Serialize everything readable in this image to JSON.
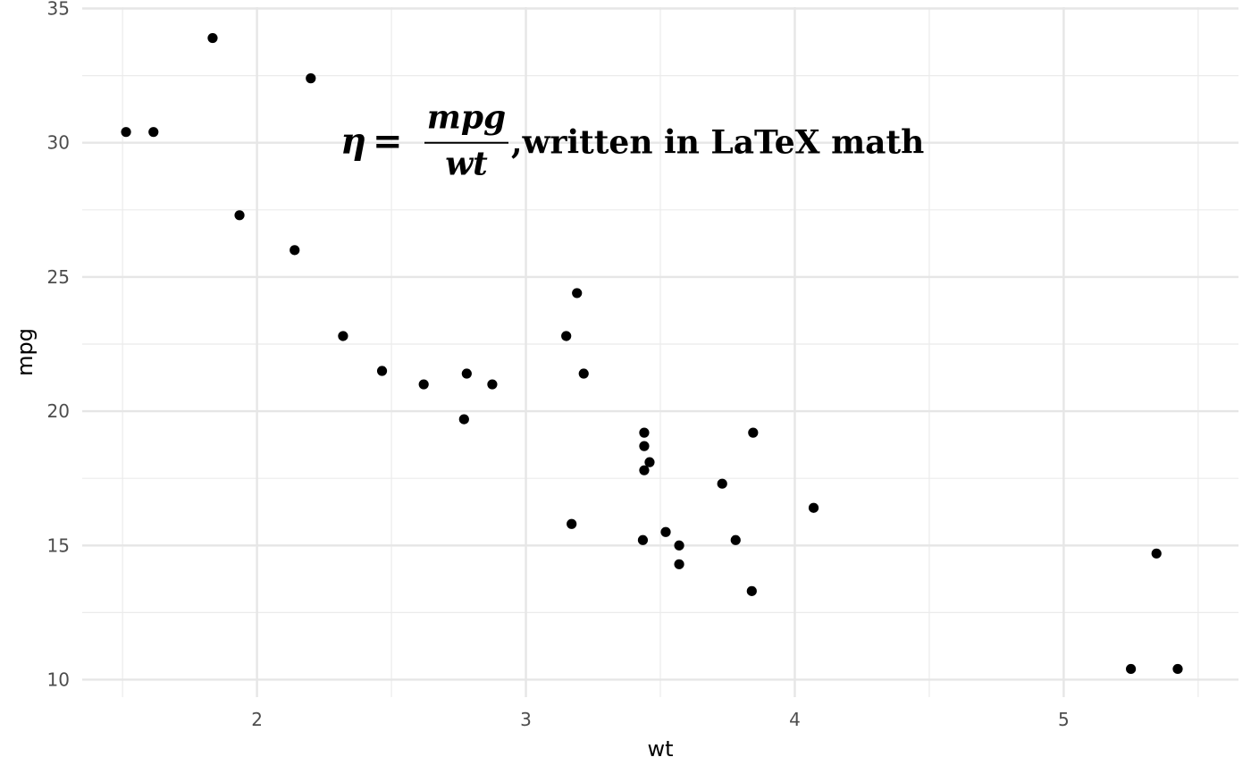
{
  "chart_data": {
    "type": "scatter",
    "title": "",
    "xlabel": "wt",
    "ylabel": "mpg",
    "xlim": [
      1.35,
      5.65
    ],
    "ylim": [
      9.35,
      35.05
    ],
    "x_ticks": [
      2,
      3,
      4,
      5
    ],
    "x_tick_labels": [
      "2",
      "3",
      "4",
      "5"
    ],
    "x_minor_ticks": [
      1.5,
      2.5,
      3.5,
      4.5,
      5.5
    ],
    "y_ticks": [
      10,
      15,
      20,
      25,
      30,
      35
    ],
    "y_tick_labels": [
      "10",
      "15",
      "20",
      "25",
      "30",
      "35"
    ],
    "y_minor_ticks": [
      12.5,
      17.5,
      22.5,
      27.5,
      32.5
    ],
    "grid": true,
    "legend": "none",
    "point_color": "#000000",
    "points": [
      {
        "x": 2.62,
        "y": 21.0
      },
      {
        "x": 2.875,
        "y": 21.0
      },
      {
        "x": 2.32,
        "y": 22.8
      },
      {
        "x": 3.215,
        "y": 21.4
      },
      {
        "x": 3.44,
        "y": 18.7
      },
      {
        "x": 3.46,
        "y": 18.1
      },
      {
        "x": 3.57,
        "y": 14.3
      },
      {
        "x": 3.19,
        "y": 24.4
      },
      {
        "x": 3.15,
        "y": 22.8
      },
      {
        "x": 3.44,
        "y": 19.2
      },
      {
        "x": 3.44,
        "y": 17.8
      },
      {
        "x": 4.07,
        "y": 16.4
      },
      {
        "x": 3.73,
        "y": 17.3
      },
      {
        "x": 3.78,
        "y": 15.2
      },
      {
        "x": 5.25,
        "y": 10.4
      },
      {
        "x": 5.424,
        "y": 10.4
      },
      {
        "x": 5.345,
        "y": 14.7
      },
      {
        "x": 2.2,
        "y": 32.4
      },
      {
        "x": 1.615,
        "y": 30.4
      },
      {
        "x": 1.835,
        "y": 33.9
      },
      {
        "x": 2.465,
        "y": 21.5
      },
      {
        "x": 3.52,
        "y": 15.5
      },
      {
        "x": 3.435,
        "y": 15.2
      },
      {
        "x": 3.84,
        "y": 13.3
      },
      {
        "x": 3.845,
        "y": 19.2
      },
      {
        "x": 1.935,
        "y": 27.3
      },
      {
        "x": 2.14,
        "y": 26.0
      },
      {
        "x": 1.513,
        "y": 30.4
      },
      {
        "x": 3.17,
        "y": 15.8
      },
      {
        "x": 2.77,
        "y": 19.7
      },
      {
        "x": 3.57,
        "y": 15.0
      },
      {
        "x": 2.78,
        "y": 21.4
      }
    ],
    "annotations": [
      {
        "x": 3.5,
        "y": 30,
        "lhs": "η",
        "equals": "=",
        "numerator": "mpg",
        "denominator": "wt",
        "suffix": ",written in LaTeX math"
      }
    ]
  }
}
